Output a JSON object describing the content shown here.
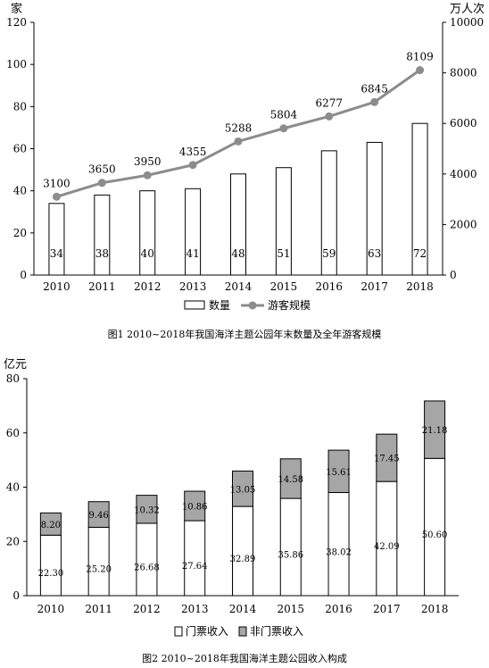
{
  "chart_data": [
    {
      "type": "bar",
      "title": "图1 2010~2018年我国海洋主题公园年末数量及全年游客规模",
      "categories": [
        "2010",
        "2011",
        "2012",
        "2013",
        "2014",
        "2015",
        "2016",
        "2017",
        "2018"
      ],
      "y_left": {
        "unit": "家",
        "ylim": [
          0,
          120
        ],
        "ticks": [
          0,
          20,
          40,
          60,
          80,
          100,
          120
        ]
      },
      "y_right": {
        "unit": "万人次",
        "ylim": [
          0,
          10000
        ],
        "ticks": [
          0,
          2000,
          4000,
          6000,
          8000,
          10000
        ]
      },
      "series": [
        {
          "name": "数量",
          "type": "bar",
          "axis": "left",
          "values": [
            34,
            38,
            40,
            41,
            48,
            51,
            59,
            63,
            72
          ],
          "color": "#ffffff"
        },
        {
          "name": "游客规模",
          "type": "line",
          "axis": "right",
          "values": [
            3100,
            3650,
            3950,
            4355,
            5288,
            5804,
            6277,
            6845,
            8109
          ],
          "color": "#8c8c8c"
        }
      ],
      "grid": false,
      "legend": "bottom"
    },
    {
      "type": "bar",
      "stacked": true,
      "title": "图2 2010~2018年我国海洋主题公园收入构成",
      "categories": [
        "2010",
        "2011",
        "2012",
        "2013",
        "2014",
        "2015",
        "2016",
        "2017",
        "2018"
      ],
      "y_left": {
        "unit": "亿元",
        "ylim": [
          0,
          80
        ],
        "ticks": [
          0,
          20,
          40,
          60,
          80
        ]
      },
      "series": [
        {
          "name": "门票收入",
          "values": [
            22.3,
            25.2,
            26.68,
            27.64,
            32.89,
            35.86,
            38.02,
            42.09,
            50.6
          ],
          "labels": [
            "22.30",
            "25.20",
            "26.68",
            "27.64",
            "32.89",
            "35.86",
            "38.02",
            "42.09",
            "50.60"
          ],
          "color": "#ffffff"
        },
        {
          "name": "非门票收入",
          "values": [
            8.2,
            9.46,
            10.32,
            10.86,
            13.05,
            14.58,
            15.61,
            17.45,
            21.18
          ],
          "labels": [
            "8.20",
            "9.46",
            "10.32",
            "10.86",
            "13.05",
            "14.58",
            "15.61",
            "17.45",
            "21.18"
          ],
          "color": "#a6a6a6"
        }
      ],
      "grid": false,
      "legend": "bottom"
    }
  ]
}
